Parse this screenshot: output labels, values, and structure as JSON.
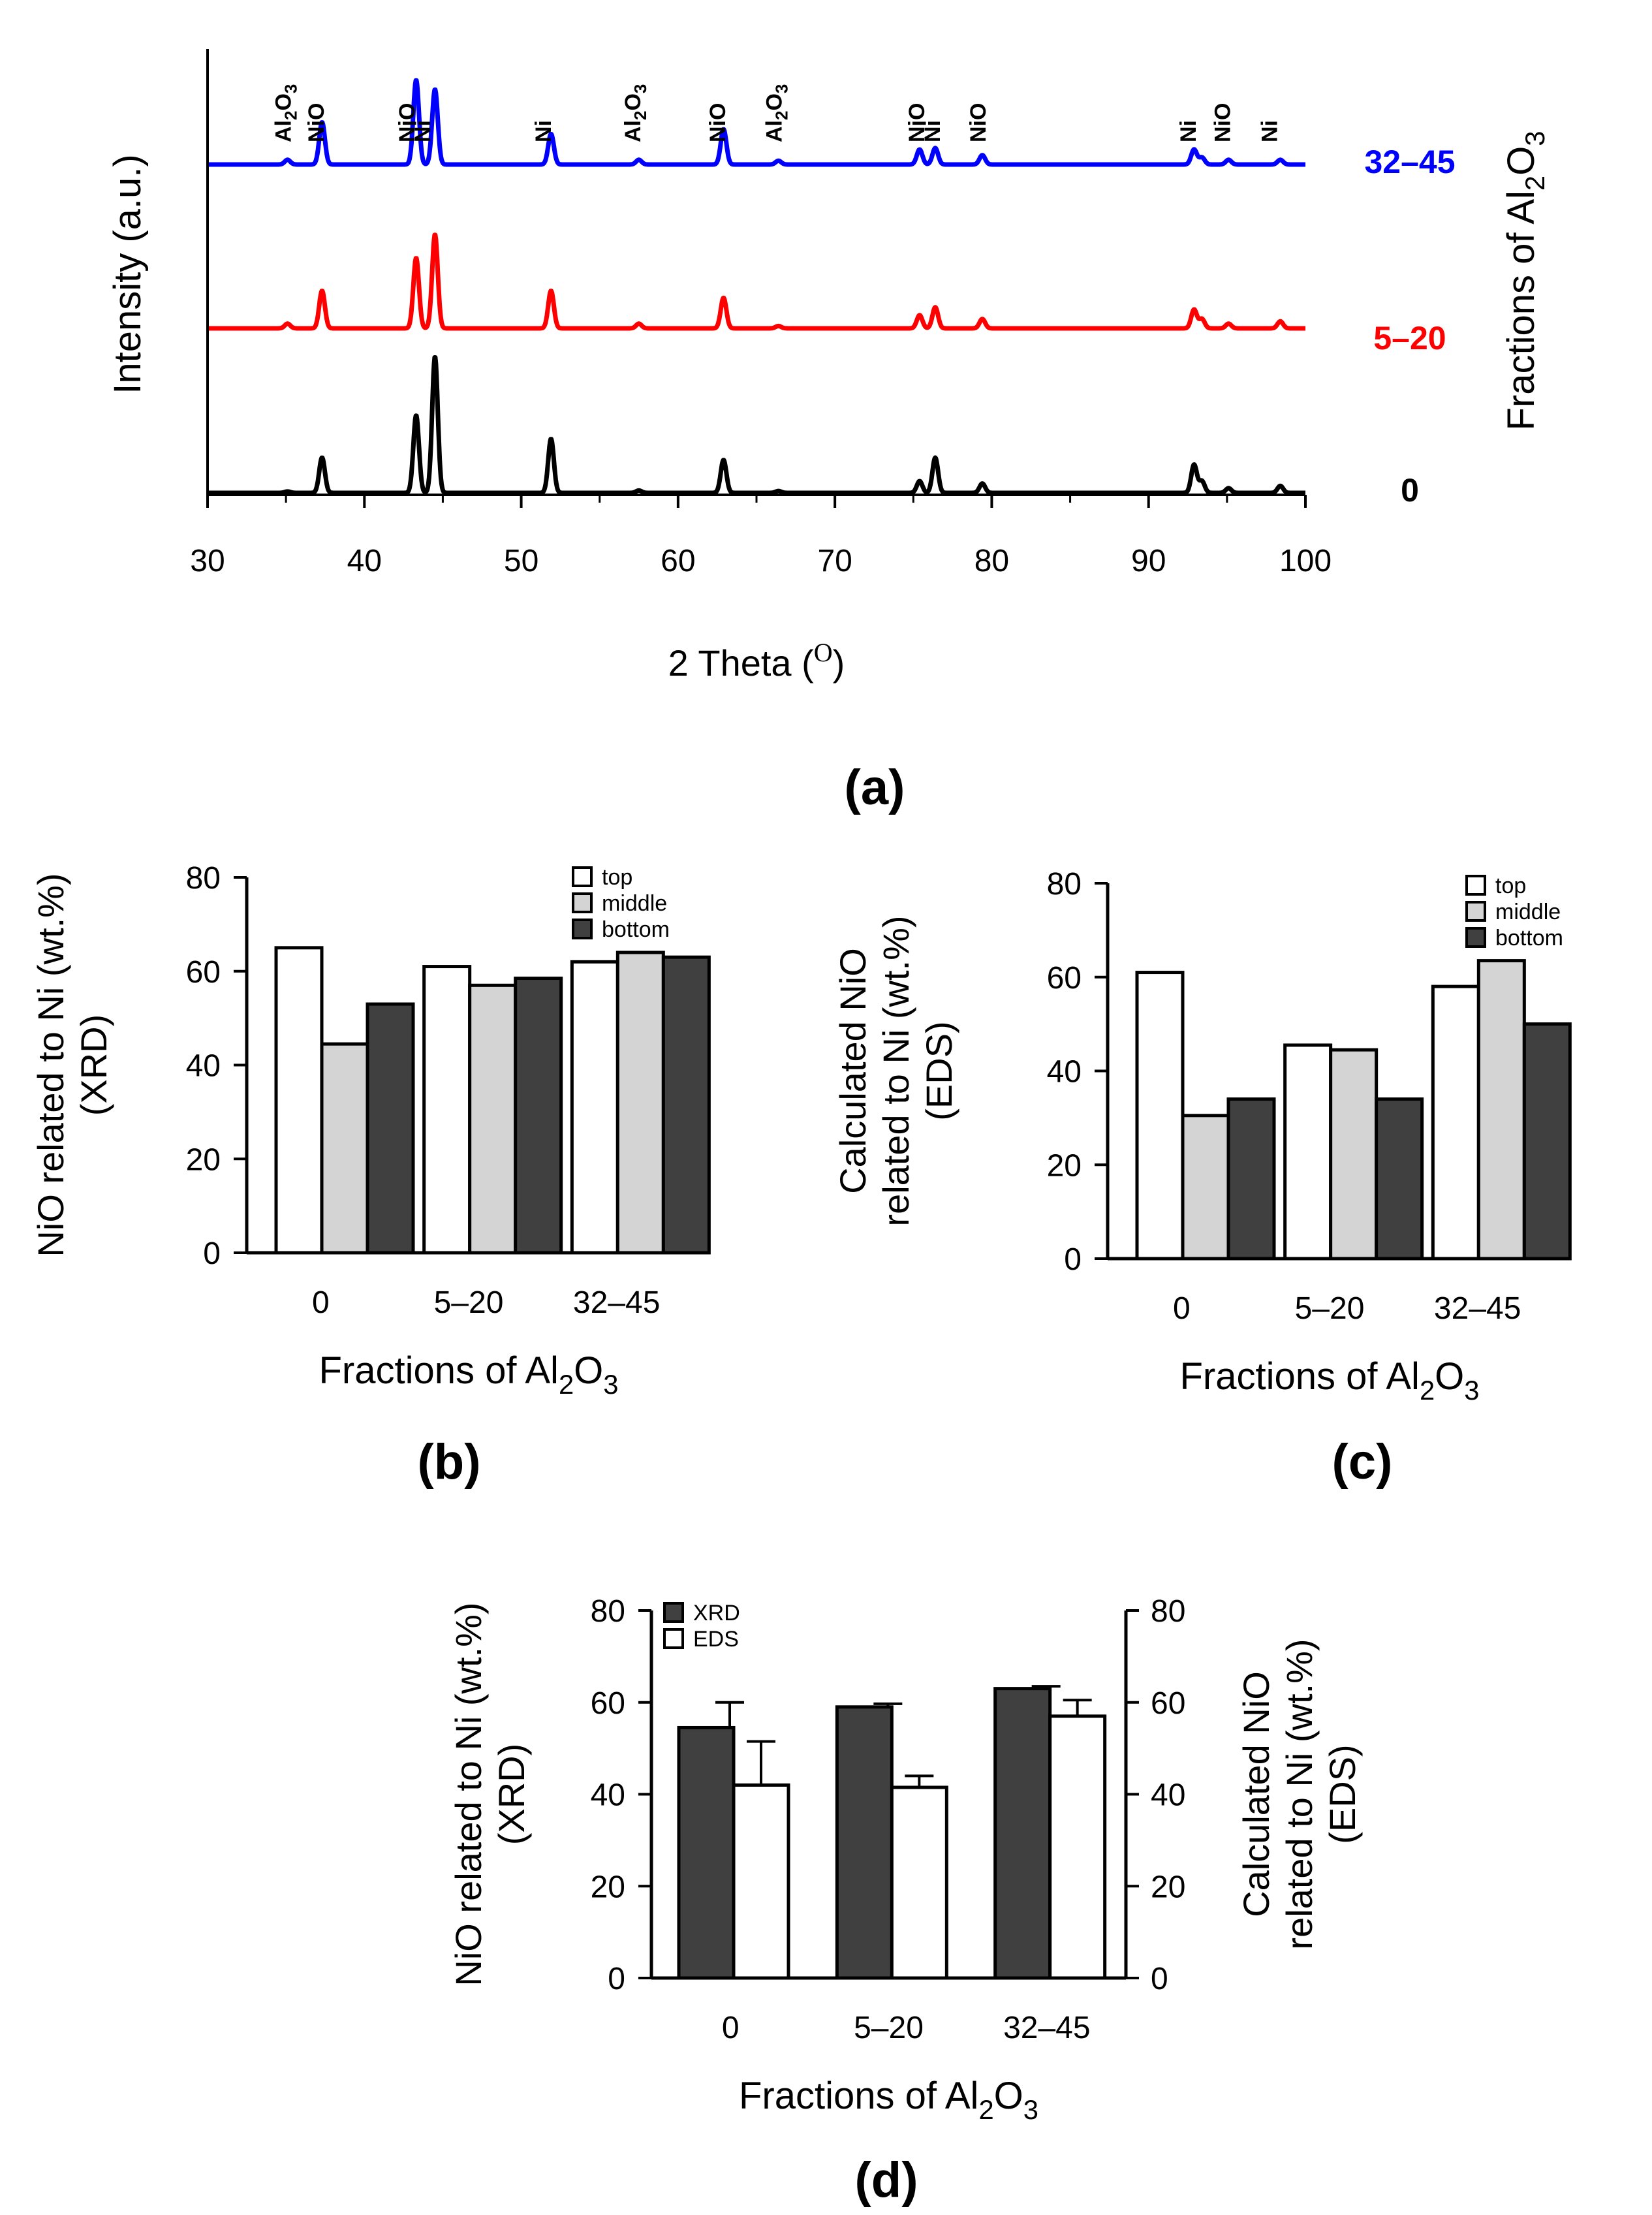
{
  "chart_data": [
    {
      "id": "a",
      "type": "line",
      "panel_label": "(a)",
      "xlabel": "2 Theta (",
      "xlabel_unit": "O",
      "xlabel_close": ")",
      "ylabel": "Intensity (a.u.)",
      "y2label": {
        "prefix": "Fractions of Al",
        "sub1": "2",
        "mid": "O",
        "sub2": "3"
      },
      "xlim": [
        30,
        100
      ],
      "xticks": [
        30,
        40,
        50,
        60,
        70,
        80,
        90,
        100
      ],
      "ylim": [
        0,
        100
      ],
      "series": [
        {
          "name": "0",
          "color": "#000000",
          "baseline": 0,
          "peaks": [
            [
              35.1,
              0.3
            ],
            [
              37.3,
              7.5
            ],
            [
              43.3,
              16.5
            ],
            [
              44.5,
              29
            ],
            [
              51.9,
              11.5
            ],
            [
              57.5,
              0.5
            ],
            [
              62.9,
              7
            ],
            [
              66.4,
              0.4
            ],
            [
              75.4,
              2.5
            ],
            [
              76.4,
              7.5
            ],
            [
              79.4,
              2
            ],
            [
              92.9,
              6
            ],
            [
              93.4,
              2.5
            ],
            [
              95.1,
              1
            ],
            [
              98.4,
              1.5
            ]
          ]
        },
        {
          "name": "5–20",
          "color": "#ff0000",
          "baseline": 35,
          "peaks": [
            [
              35.1,
              1
            ],
            [
              37.3,
              8
            ],
            [
              43.3,
              15
            ],
            [
              44.5,
              20
            ],
            [
              51.9,
              8
            ],
            [
              57.5,
              1
            ],
            [
              62.9,
              6.5
            ],
            [
              66.4,
              0.5
            ],
            [
              75.4,
              2.8
            ],
            [
              76.4,
              4.5
            ],
            [
              79.4,
              2
            ],
            [
              92.9,
              4
            ],
            [
              93.4,
              2
            ],
            [
              95.1,
              1
            ],
            [
              98.4,
              1.5
            ]
          ]
        },
        {
          "name": "32–45",
          "color": "#0000ff",
          "baseline": 70,
          "peaks": [
            [
              35.1,
              1
            ],
            [
              37.3,
              9
            ],
            [
              43.3,
              18
            ],
            [
              44.5,
              16
            ],
            [
              51.9,
              6.5
            ],
            [
              57.5,
              1
            ],
            [
              62.9,
              7.5
            ],
            [
              66.4,
              0.8
            ],
            [
              75.4,
              3.2
            ],
            [
              76.4,
              3.5
            ],
            [
              79.4,
              2
            ],
            [
              92.9,
              3.2
            ],
            [
              93.4,
              1.5
            ],
            [
              95.1,
              1
            ],
            [
              98.4,
              1
            ]
          ]
        }
      ],
      "series_labels": [
        {
          "text": "32–45",
          "color": "#0000ff"
        },
        {
          "text": "5–20",
          "color": "#ff0000"
        },
        {
          "text": "0",
          "color": "#000000"
        }
      ],
      "annotations": [
        {
          "x": 35.3,
          "parts": [
            [
              "Al",
              ""
            ],
            [
              "2",
              "sub"
            ],
            [
              "O",
              ""
            ],
            [
              "3",
              "sub"
            ]
          ]
        },
        {
          "x": 37.4,
          "parts": [
            [
              "NiO",
              ""
            ]
          ]
        },
        {
          "x": 43.2,
          "parts": [
            [
              "NiO",
              ""
            ]
          ]
        },
        {
          "x": 44.2,
          "parts": [
            [
              "Ni",
              ""
            ]
          ]
        },
        {
          "x": 51.9,
          "parts": [
            [
              "Ni",
              ""
            ]
          ]
        },
        {
          "x": 57.6,
          "parts": [
            [
              "Al",
              ""
            ],
            [
              "2",
              "sub"
            ],
            [
              "O",
              ""
            ],
            [
              "3",
              "sub"
            ]
          ]
        },
        {
          "x": 63.0,
          "parts": [
            [
              "NiO",
              ""
            ]
          ]
        },
        {
          "x": 66.6,
          "parts": [
            [
              "Al",
              ""
            ],
            [
              "2",
              "sub"
            ],
            [
              "O",
              ""
            ],
            [
              "3",
              "sub"
            ]
          ]
        },
        {
          "x": 75.7,
          "parts": [
            [
              "NiO",
              ""
            ]
          ]
        },
        {
          "x": 76.7,
          "parts": [
            [
              "Ni",
              ""
            ]
          ]
        },
        {
          "x": 79.6,
          "parts": [
            [
              "NiO",
              ""
            ]
          ]
        },
        {
          "x": 93.0,
          "parts": [
            [
              "Ni",
              ""
            ]
          ]
        },
        {
          "x": 95.2,
          "parts": [
            [
              "NiO",
              ""
            ]
          ]
        },
        {
          "x": 98.2,
          "parts": [
            [
              "Ni",
              ""
            ]
          ]
        }
      ]
    },
    {
      "id": "b",
      "type": "bar",
      "panel_label": "(b)",
      "categories": [
        "0",
        "5–20",
        "32–45"
      ],
      "ylim": [
        0,
        80
      ],
      "yticks": [
        0,
        20,
        40,
        60,
        80
      ],
      "ylabel": [
        "NiO related to Ni (wt.%)",
        "(XRD)"
      ],
      "xlabel": {
        "prefix": "Fractions of Al",
        "sub1": "2",
        "mid": "O",
        "sub2": "3"
      },
      "legend": "top-right",
      "series": [
        {
          "name": "top",
          "color": "#ffffff",
          "values": [
            65,
            61,
            62
          ]
        },
        {
          "name": "middle",
          "color": "#d4d4d4",
          "values": [
            44.5,
            57,
            64
          ]
        },
        {
          "name": "bottom",
          "color": "#404040",
          "values": [
            53,
            58.5,
            63
          ]
        }
      ]
    },
    {
      "id": "c",
      "type": "bar",
      "panel_label": "(c)",
      "categories": [
        "0",
        "5–20",
        "32–45"
      ],
      "ylim": [
        0,
        80
      ],
      "yticks": [
        0,
        20,
        40,
        60,
        80
      ],
      "ylabel": [
        "Calculated NiO",
        "related to Ni (wt.%)",
        "(EDS)"
      ],
      "xlabel": {
        "prefix": "Fractions of Al",
        "sub1": "2",
        "mid": "O",
        "sub2": "3"
      },
      "legend": "top-right",
      "series": [
        {
          "name": "top",
          "color": "#ffffff",
          "values": [
            61,
            45.5,
            58
          ]
        },
        {
          "name": "middle",
          "color": "#d4d4d4",
          "values": [
            30.5,
            44.5,
            63.5
          ]
        },
        {
          "name": "bottom",
          "color": "#404040",
          "values": [
            34,
            34,
            50
          ]
        }
      ]
    },
    {
      "id": "d",
      "type": "bar",
      "panel_label": "(d)",
      "categories": [
        "0",
        "5–20",
        "32–45"
      ],
      "ylim": [
        0,
        80
      ],
      "yticks": [
        0,
        20,
        40,
        60,
        80
      ],
      "ylabel": [
        "NiO related to Ni (wt.%)",
        "(XRD)"
      ],
      "y2label": [
        "Calculated NiO",
        "related to Ni (wt.%)",
        "(EDS)"
      ],
      "xlabel": {
        "prefix": "Fractions of Al",
        "sub1": "2",
        "mid": "O",
        "sub2": "3"
      },
      "legend": "top-left",
      "series": [
        {
          "name": "XRD",
          "color": "#404040",
          "values": [
            54.5,
            59,
            63
          ],
          "errors": [
            5.5,
            0.7,
            0.5
          ]
        },
        {
          "name": "EDS",
          "color": "#ffffff",
          "values": [
            42,
            41.5,
            57
          ],
          "errors": [
            9.5,
            2.5,
            3.5
          ]
        }
      ]
    }
  ]
}
